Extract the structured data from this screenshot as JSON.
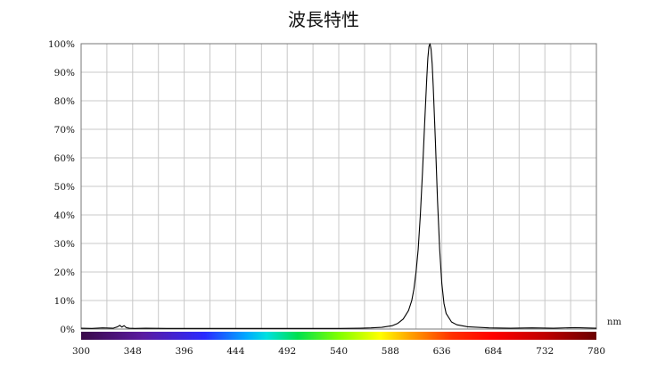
{
  "chart_data": {
    "type": "line",
    "title": "波長特性",
    "xlabel": "",
    "ylabel": "",
    "x_unit": "nm",
    "xlim": [
      300,
      780
    ],
    "ylim": [
      0,
      100
    ],
    "x_ticks": [
      300,
      348,
      396,
      444,
      492,
      540,
      588,
      636,
      684,
      732,
      780
    ],
    "x_tick_labels": [
      "300",
      "348",
      "396",
      "444",
      "492",
      "540",
      "588",
      "636",
      "684",
      "732",
      "780"
    ],
    "y_ticks": [
      0,
      10,
      20,
      30,
      40,
      50,
      60,
      70,
      80,
      90,
      100
    ],
    "y_tick_labels": [
      "0%",
      "10%",
      "20%",
      "30%",
      "40%",
      "50%",
      "60%",
      "70%",
      "80%",
      "90%",
      "100%"
    ],
    "grid": true,
    "spectrum_bar": true,
    "line_color": "#000000",
    "grid_color": "#c8c8c8",
    "series": [
      {
        "x": [
          300,
          310,
          320,
          330,
          334,
          336,
          338,
          340,
          342,
          345,
          350,
          360,
          380,
          400,
          420,
          440,
          460,
          480,
          500,
          520,
          540,
          560,
          570,
          580,
          590,
          595,
          600,
          605,
          608,
          610,
          612,
          614,
          616,
          618,
          620,
          622,
          623,
          624,
          625,
          626,
          627,
          628,
          630,
          632,
          634,
          636,
          638,
          640,
          645,
          650,
          660,
          680,
          700,
          720,
          740,
          760,
          780
        ],
        "y": [
          0.3,
          0.2,
          0.4,
          0.3,
          0.8,
          1.3,
          0.7,
          1.2,
          0.5,
          0.3,
          0.2,
          0.3,
          0.2,
          0.2,
          0.2,
          0.2,
          0.2,
          0.2,
          0.2,
          0.2,
          0.2,
          0.3,
          0.4,
          0.6,
          1.2,
          2.0,
          3.5,
          6.5,
          10,
          14,
          20,
          28,
          40,
          55,
          72,
          88,
          95,
          99,
          100,
          98,
          93,
          85,
          66,
          45,
          28,
          16,
          9,
          5.5,
          2.5,
          1.5,
          0.8,
          0.4,
          0.3,
          0.4,
          0.3,
          0.5,
          0.3
        ]
      }
    ]
  }
}
